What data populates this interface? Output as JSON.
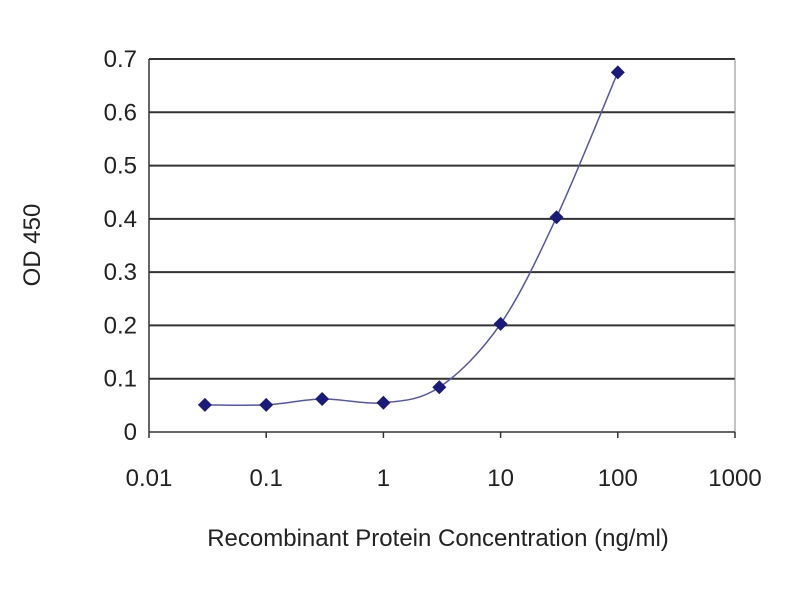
{
  "chart_data": {
    "type": "line",
    "title": "",
    "xlabel": "Recombinant Protein Concentration (ng/ml)",
    "ylabel": "OD 450",
    "x_scale": "log",
    "xlim": [
      0.01,
      1000
    ],
    "ylim": [
      0,
      0.7
    ],
    "x_ticks": [
      "0.01",
      "0.1",
      "1",
      "10",
      "100",
      "1000"
    ],
    "y_ticks": [
      "0",
      "0.1",
      "0.2",
      "0.3",
      "0.4",
      "0.5",
      "0.6",
      "0.7"
    ],
    "grid": "horizontal",
    "series": [
      {
        "x": [
          0.03,
          0.1,
          0.3,
          1,
          3,
          10,
          30,
          100
        ],
        "y": [
          0.051,
          0.051,
          0.062,
          0.055,
          0.084,
          0.203,
          0.403,
          0.675
        ],
        "marker": "diamond",
        "smooth": true
      }
    ],
    "colors": {
      "series": "#1a1a7a",
      "line": "#5555aa",
      "grid": "#333333"
    }
  }
}
